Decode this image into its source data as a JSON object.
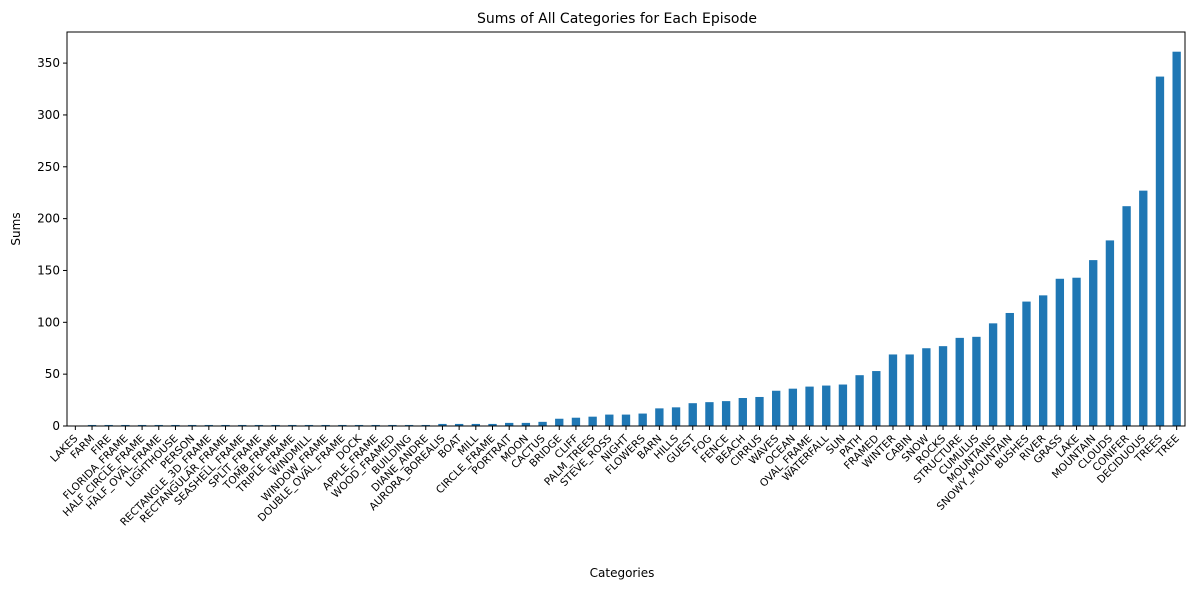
{
  "chart_data": {
    "type": "bar",
    "title": "Sums of All Categories for Each Episode",
    "xlabel": "Categories",
    "ylabel": "Sums",
    "ylim": [
      0,
      380
    ],
    "yticks": [
      0,
      50,
      100,
      150,
      200,
      250,
      300,
      350
    ],
    "grid": false,
    "legend": "none",
    "bar_color": "#1f77b4",
    "categories": [
      "LAKES",
      "FARM",
      "FIRE",
      "FLORIDA_FRAME",
      "HALF_CIRCLE_FRAME",
      "HALF_OVAL_FRAME",
      "LIGHTHOUSE",
      "PERSON",
      "RECTANGLE_3D_FRAME",
      "RECTANGULAR_FRAME",
      "SEASHELL_FRAME",
      "SPLIT_FRAME",
      "TOMB_FRAME",
      "TRIPLE_FRAME",
      "WINDMILL",
      "WINDOW_FRAME",
      "DOUBLE_OVAL_FRAME",
      "DOCK",
      "APPLE_FRAME",
      "WOOD_FRAMED",
      "BUILDING",
      "DIANE_ANDRE",
      "AURORA_BOREALIS",
      "BOAT",
      "MILL",
      "CIRCLE_FRAME",
      "PORTRAIT",
      "MOON",
      "CACTUS",
      "BRIDGE",
      "CLIFF",
      "PALM_TREES",
      "STEVE_ROSS",
      "NIGHT",
      "FLOWERS",
      "BARN",
      "HILLS",
      "GUEST",
      "FOG",
      "FENCE",
      "BEACH",
      "CIRRUS",
      "WAVES",
      "OCEAN",
      "OVAL_FRAME",
      "WATERFALL",
      "SUN",
      "PATH",
      "FRAMED",
      "WINTER",
      "CABIN",
      "SNOW",
      "ROCKS",
      "STRUCTURE",
      "CUMULUS",
      "MOUNTAINS",
      "SNOWY_MOUNTAIN",
      "BUSHES",
      "RIVER",
      "GRASS",
      "LAKE",
      "MOUNTAIN",
      "CLOUDS",
      "CONIFER",
      "DECIDUOUS",
      "TREES",
      "TREE"
    ],
    "values": [
      0,
      1,
      1,
      1,
      1,
      1,
      1,
      1,
      1,
      1,
      1,
      1,
      1,
      1,
      1,
      1,
      1,
      1,
      1,
      1,
      1,
      1,
      2,
      2,
      2,
      2,
      3,
      3,
      4,
      7,
      8,
      9,
      11,
      11,
      12,
      17,
      18,
      22,
      23,
      24,
      27,
      28,
      34,
      36,
      38,
      39,
      40,
      49,
      53,
      69,
      69,
      75,
      77,
      85,
      86,
      99,
      109,
      120,
      126,
      142,
      143,
      160,
      179,
      212,
      227,
      337,
      361
    ]
  }
}
